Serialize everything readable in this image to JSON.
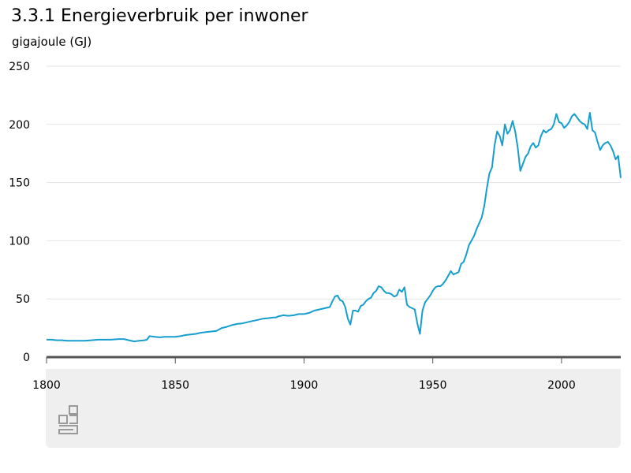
{
  "chart_data": {
    "type": "line",
    "title": "3.3.1 Energieverbruik per inwoner",
    "subtitle": "gigajoule (GJ)",
    "xlabel": "",
    "ylabel": "",
    "xlim": [
      1800,
      2023
    ],
    "ylim": [
      0,
      250
    ],
    "x_ticks": [
      "1800",
      "1850",
      "1900",
      "1950",
      "2000"
    ],
    "y_ticks": [
      "0",
      "50",
      "100",
      "150",
      "200",
      "250"
    ],
    "grid": true,
    "color": "#169fce",
    "x": [
      1800,
      1802,
      1804,
      1806,
      1808,
      1810,
      1815,
      1820,
      1825,
      1828,
      1830,
      1832,
      1834,
      1836,
      1838,
      1839,
      1840,
      1842,
      1844,
      1846,
      1848,
      1850,
      1852,
      1854,
      1856,
      1858,
      1860,
      1862,
      1864,
      1866,
      1868,
      1870,
      1872,
      1874,
      1876,
      1878,
      1880,
      1882,
      1884,
      1886,
      1888,
      1889,
      1890,
      1891,
      1892,
      1894,
      1896,
      1898,
      1900,
      1902,
      1904,
      1906,
      1908,
      1910,
      1911,
      1912,
      1913,
      1914,
      1915,
      1916,
      1917,
      1918,
      1919,
      1920,
      1921,
      1922,
      1923,
      1924,
      1925,
      1926,
      1927,
      1928,
      1929,
      1930,
      1931,
      1932,
      1933,
      1934,
      1935,
      1936,
      1937,
      1938,
      1939,
      1940,
      1941,
      1942,
      1943,
      1944,
      1945,
      1946,
      1947,
      1948,
      1949,
      1950,
      1951,
      1952,
      1953,
      1954,
      1955,
      1956,
      1957,
      1958,
      1959,
      1960,
      1961,
      1962,
      1963,
      1964,
      1965,
      1966,
      1967,
      1968,
      1969,
      1970,
      1971,
      1972,
      1973,
      1974,
      1975,
      1976,
      1977,
      1978,
      1979,
      1980,
      1981,
      1982,
      1983,
      1984,
      1985,
      1986,
      1987,
      1988,
      1989,
      1990,
      1991,
      1992,
      1993,
      1994,
      1995,
      1996,
      1997,
      1998,
      1999,
      2000,
      2001,
      2002,
      2003,
      2004,
      2005,
      2006,
      2007,
      2008,
      2009,
      2010,
      2011,
      2012,
      2013,
      2014,
      2015,
      2016,
      2017,
      2018,
      2019,
      2020,
      2021,
      2022,
      2023
    ],
    "values": [
      15,
      15,
      14.5,
      14.5,
      14,
      14,
      14,
      15,
      15,
      15.5,
      15.5,
      14.5,
      13.5,
      14,
      14.5,
      15,
      18,
      17.5,
      17,
      17.5,
      17.5,
      17.5,
      18,
      19,
      19.5,
      20,
      21,
      21.5,
      22,
      22.5,
      25,
      26,
      27.5,
      28.5,
      29,
      30,
      31,
      32,
      33,
      33.5,
      34,
      34,
      35,
      35.5,
      36,
      35.5,
      36,
      37,
      37,
      38,
      40,
      41,
      42,
      43,
      48,
      52,
      53,
      49,
      48,
      43,
      33,
      28,
      40,
      40,
      39,
      44,
      45,
      48,
      50,
      51,
      55,
      57,
      61,
      60,
      57,
      55,
      55,
      54,
      52,
      53,
      58,
      56,
      60,
      45,
      43,
      42,
      41,
      29,
      20,
      40,
      47,
      50,
      53,
      57,
      60,
      61,
      61,
      63,
      66,
      70,
      74,
      71,
      72,
      73,
      80,
      82,
      88,
      96,
      100,
      104,
      110,
      115,
      120,
      130,
      145,
      158,
      163,
      182,
      194,
      190,
      182,
      200,
      192,
      195,
      203,
      194,
      180,
      160,
      166,
      172,
      175,
      181,
      184,
      180,
      182,
      190,
      195,
      193,
      195,
      196,
      200,
      209,
      202,
      201,
      197,
      199,
      202,
      207,
      209,
      206,
      203,
      201,
      200,
      196,
      210,
      195,
      193,
      185,
      178,
      182,
      184,
      185,
      182,
      177,
      170,
      173,
      154
    ]
  }
}
